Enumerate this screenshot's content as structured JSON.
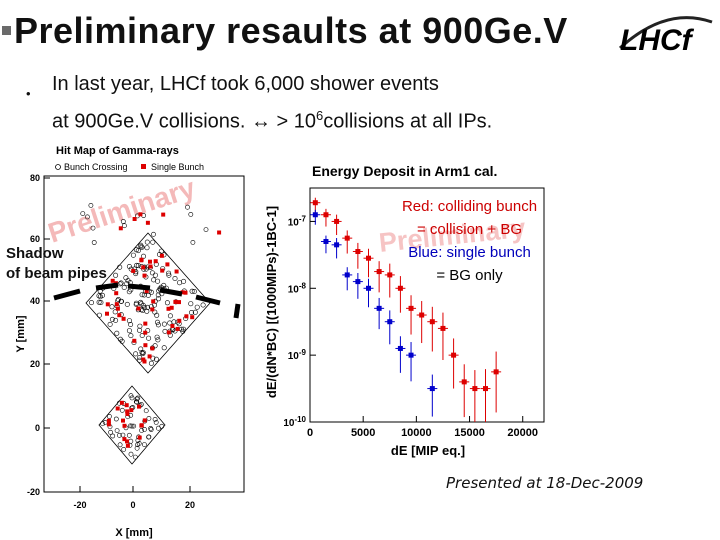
{
  "slide": {
    "title": "Preliminary resaults at 900Ge.V",
    "logo_text": "LHCf",
    "bullet1": "In last year, LHCf took 6,000 shower events",
    "bullet2_pre": "at 900Ge.V collisions. ↔ > 10",
    "bullet2_exp": "6",
    "bullet2_post": "collisions at all IPs.",
    "shadow_line1": "Shadow",
    "shadow_line2": "of beam pipes",
    "legend_red_1": "Red: colliding bunch",
    "legend_red_2": "= collision + BG",
    "legend_blue_1": "Blue: single bunch",
    "legend_blue_2": "= BG only",
    "presented": "Presented at 18-Dec-2009"
  },
  "chart_data": [
    {
      "type": "scatter",
      "title": "Hit Map of Gamma-rays",
      "xlabel": "X [mm]",
      "ylabel": "Y [mm]",
      "xticks": [
        "-20",
        "0",
        "20"
      ],
      "yticks": [
        "80",
        "60",
        "40",
        "20",
        "0",
        "-20"
      ],
      "legend": [
        "Bunch Crossing",
        "Single Bunch"
      ],
      "watermark": "Preliminary",
      "series": [
        {
          "name": "Bunch Crossing",
          "marker": "open-circle",
          "color": "#000000"
        },
        {
          "name": "Single Bunch",
          "marker": "square",
          "color": "#dd0000"
        }
      ]
    },
    {
      "type": "scatter",
      "title": "Energy Deposit in Arm1 cal.",
      "xlabel": "dE [MIP eq.]",
      "ylabel": "dE/(dN*BC) [(1000MIPs)-1BC-1]",
      "xticks": [
        "0",
        "5000",
        "10000",
        "15000",
        "20000"
      ],
      "yticks": [
        "10-7",
        "10-8",
        "10-9",
        "10-10"
      ],
      "xlim": [
        0,
        22000
      ],
      "ylog": true,
      "ylim_exp": [
        -10,
        -6.5
      ],
      "watermark": "Preliminary",
      "series": [
        {
          "name": "Red",
          "color": "#dd0000",
          "x": [
            500,
            1500,
            2500,
            3500,
            4500,
            5500,
            6500,
            7500,
            8500,
            9500,
            10500,
            11500,
            12500,
            13500,
            14500,
            15500,
            16500,
            17500
          ],
          "logy": [
            -6.72,
            -6.9,
            -7.0,
            -7.25,
            -7.45,
            -7.55,
            -7.75,
            -7.8,
            -8.0,
            -8.3,
            -8.4,
            -8.5,
            -8.6,
            -9.0,
            -9.4,
            -9.5,
            -9.5,
            -9.25
          ]
        },
        {
          "name": "Blue",
          "color": "#0000cc",
          "x": [
            500,
            1500,
            2500,
            3500,
            4500,
            5500,
            6500,
            7500,
            8500,
            9500,
            11500
          ],
          "logy": [
            -6.9,
            -7.3,
            -7.35,
            -7.8,
            -7.9,
            -8.0,
            -8.3,
            -8.5,
            -8.9,
            -9.0,
            -9.5
          ]
        }
      ]
    }
  ]
}
